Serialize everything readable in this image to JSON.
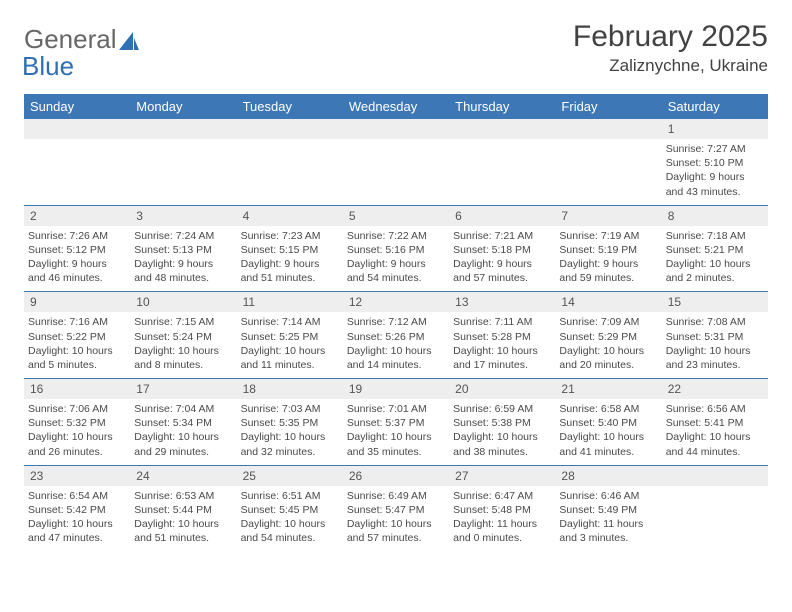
{
  "logo": {
    "gray": "General",
    "blue": "Blue"
  },
  "title": "February 2025",
  "location": "Zaliznychne, Ukraine",
  "colors": {
    "header_bg": "#3d77b5",
    "header_text": "#ffffff",
    "row_bg": "#eeeeee",
    "divider": "#3d77b5",
    "text": "#4a4a4a",
    "title_text": "#424242",
    "logo_gray": "#676767",
    "logo_blue": "#2f6fb3"
  },
  "day_names": [
    "Sunday",
    "Monday",
    "Tuesday",
    "Wednesday",
    "Thursday",
    "Friday",
    "Saturday"
  ],
  "weeks": [
    [
      null,
      null,
      null,
      null,
      null,
      null,
      {
        "d": "1",
        "sr": "7:27 AM",
        "ss": "5:10 PM",
        "dl": "9 hours and 43 minutes."
      }
    ],
    [
      {
        "d": "2",
        "sr": "7:26 AM",
        "ss": "5:12 PM",
        "dl": "9 hours and 46 minutes."
      },
      {
        "d": "3",
        "sr": "7:24 AM",
        "ss": "5:13 PM",
        "dl": "9 hours and 48 minutes."
      },
      {
        "d": "4",
        "sr": "7:23 AM",
        "ss": "5:15 PM",
        "dl": "9 hours and 51 minutes."
      },
      {
        "d": "5",
        "sr": "7:22 AM",
        "ss": "5:16 PM",
        "dl": "9 hours and 54 minutes."
      },
      {
        "d": "6",
        "sr": "7:21 AM",
        "ss": "5:18 PM",
        "dl": "9 hours and 57 minutes."
      },
      {
        "d": "7",
        "sr": "7:19 AM",
        "ss": "5:19 PM",
        "dl": "9 hours and 59 minutes."
      },
      {
        "d": "8",
        "sr": "7:18 AM",
        "ss": "5:21 PM",
        "dl": "10 hours and 2 minutes."
      }
    ],
    [
      {
        "d": "9",
        "sr": "7:16 AM",
        "ss": "5:22 PM",
        "dl": "10 hours and 5 minutes."
      },
      {
        "d": "10",
        "sr": "7:15 AM",
        "ss": "5:24 PM",
        "dl": "10 hours and 8 minutes."
      },
      {
        "d": "11",
        "sr": "7:14 AM",
        "ss": "5:25 PM",
        "dl": "10 hours and 11 minutes."
      },
      {
        "d": "12",
        "sr": "7:12 AM",
        "ss": "5:26 PM",
        "dl": "10 hours and 14 minutes."
      },
      {
        "d": "13",
        "sr": "7:11 AM",
        "ss": "5:28 PM",
        "dl": "10 hours and 17 minutes."
      },
      {
        "d": "14",
        "sr": "7:09 AM",
        "ss": "5:29 PM",
        "dl": "10 hours and 20 minutes."
      },
      {
        "d": "15",
        "sr": "7:08 AM",
        "ss": "5:31 PM",
        "dl": "10 hours and 23 minutes."
      }
    ],
    [
      {
        "d": "16",
        "sr": "7:06 AM",
        "ss": "5:32 PM",
        "dl": "10 hours and 26 minutes."
      },
      {
        "d": "17",
        "sr": "7:04 AM",
        "ss": "5:34 PM",
        "dl": "10 hours and 29 minutes."
      },
      {
        "d": "18",
        "sr": "7:03 AM",
        "ss": "5:35 PM",
        "dl": "10 hours and 32 minutes."
      },
      {
        "d": "19",
        "sr": "7:01 AM",
        "ss": "5:37 PM",
        "dl": "10 hours and 35 minutes."
      },
      {
        "d": "20",
        "sr": "6:59 AM",
        "ss": "5:38 PM",
        "dl": "10 hours and 38 minutes."
      },
      {
        "d": "21",
        "sr": "6:58 AM",
        "ss": "5:40 PM",
        "dl": "10 hours and 41 minutes."
      },
      {
        "d": "22",
        "sr": "6:56 AM",
        "ss": "5:41 PM",
        "dl": "10 hours and 44 minutes."
      }
    ],
    [
      {
        "d": "23",
        "sr": "6:54 AM",
        "ss": "5:42 PM",
        "dl": "10 hours and 47 minutes."
      },
      {
        "d": "24",
        "sr": "6:53 AM",
        "ss": "5:44 PM",
        "dl": "10 hours and 51 minutes."
      },
      {
        "d": "25",
        "sr": "6:51 AM",
        "ss": "5:45 PM",
        "dl": "10 hours and 54 minutes."
      },
      {
        "d": "26",
        "sr": "6:49 AM",
        "ss": "5:47 PM",
        "dl": "10 hours and 57 minutes."
      },
      {
        "d": "27",
        "sr": "6:47 AM",
        "ss": "5:48 PM",
        "dl": "11 hours and 0 minutes."
      },
      {
        "d": "28",
        "sr": "6:46 AM",
        "ss": "5:49 PM",
        "dl": "11 hours and 3 minutes."
      },
      null
    ]
  ]
}
